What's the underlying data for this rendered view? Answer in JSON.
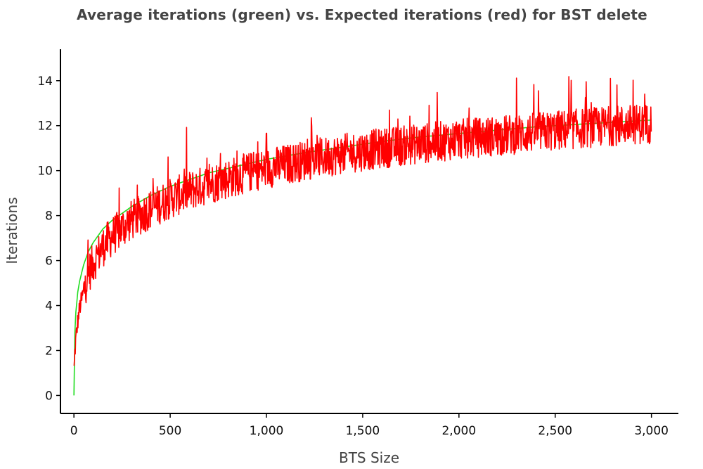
{
  "chart_data": {
    "type": "line",
    "title": "Average iterations (green) vs. Expected iterations (red) for BST delete",
    "xlabel": "BTS Size",
    "ylabel": "Iterations",
    "xlim": [
      -70,
      3140
    ],
    "ylim": [
      -0.8,
      15.4
    ],
    "xticks": [
      0,
      500,
      1000,
      1500,
      2000,
      2500,
      3000
    ],
    "xtick_labels": [
      "0",
      "500",
      "1,000",
      "1,500",
      "2,000",
      "2,500",
      "3,000"
    ],
    "yticks": [
      0,
      2,
      4,
      6,
      8,
      10,
      12,
      14
    ],
    "ytick_labels": [
      "0",
      "2",
      "4",
      "6",
      "8",
      "10",
      "12",
      "14"
    ],
    "grid": false,
    "legend": "none",
    "series": [
      {
        "color": "#22dd22",
        "description_in_title": "Average iterations (green)",
        "x": [
          0,
          5,
          10,
          20,
          30,
          50,
          75,
          100,
          150,
          200,
          300,
          400,
          500,
          600,
          700,
          800,
          900,
          1000,
          1200,
          1400,
          1600,
          1800,
          2000,
          2200,
          2400,
          2600,
          2800,
          3000
        ],
        "y": [
          0.0,
          2.8,
          3.7,
          4.6,
          5.1,
          5.8,
          6.4,
          6.8,
          7.4,
          7.8,
          8.4,
          8.9,
          9.3,
          9.6,
          9.9,
          10.1,
          10.3,
          10.5,
          10.8,
          11.05,
          11.3,
          11.5,
          11.65,
          11.8,
          11.95,
          12.05,
          12.15,
          12.25
        ]
      },
      {
        "color": "#ff0000",
        "description_in_title": "Expected iterations (red)",
        "x": [
          0,
          5,
          10,
          20,
          30,
          50,
          75,
          100,
          150,
          200,
          300,
          400,
          500,
          600,
          700,
          800,
          900,
          1000,
          1200,
          1400,
          1600,
          1800,
          2000,
          2200,
          2400,
          2600,
          2800,
          3000
        ],
        "y": [
          1.0,
          1.9,
          2.5,
          3.3,
          3.9,
          4.6,
          5.4,
          5.9,
          6.6,
          7.1,
          7.8,
          8.3,
          8.75,
          9.1,
          9.4,
          9.65,
          9.9,
          10.1,
          10.45,
          10.75,
          11.0,
          11.2,
          11.4,
          11.55,
          11.7,
          11.85,
          12.0,
          12.1
        ],
        "noise_amplitude": 0.9
      }
    ]
  }
}
